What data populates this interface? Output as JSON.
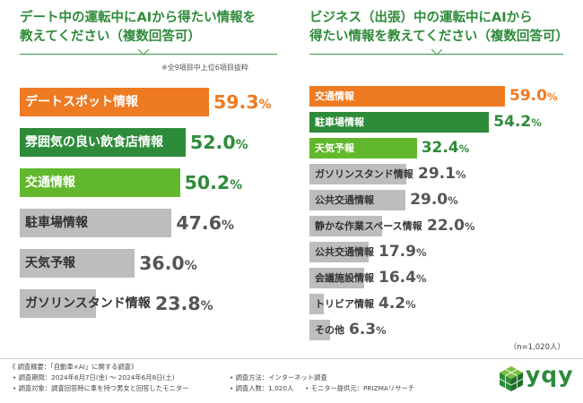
{
  "titles": {
    "left_line1": "デート中の運転中にAIから得たい情報を",
    "left_line2": "教えてください（複数回答可）",
    "right_line1": "ビジネス（出張）中の運転中にAIから",
    "right_line2": "得たい情報を教えてください（複数回答可）"
  },
  "note": "※全9項目中上位6項目抜粋",
  "sample_size": "（n=1,020人）",
  "colors": {
    "orange": "#ee7a22",
    "green": "#2e8b3a",
    "lime": "#62b82d",
    "gray": "#bdbdbd",
    "title": "#2e8b3a"
  },
  "chart_data": [
    {
      "type": "bar",
      "orientation": "horizontal",
      "title": "デート中の運転中にAIから得たい情報を教えてください（複数回答可）",
      "unit": "%",
      "categories": [
        "デートスポット情報",
        "雰囲気の良い飲食店情報",
        "交通情報",
        "駐車場情報",
        "天気予報",
        "ガソリンスタンド情報"
      ],
      "values": [
        59.3,
        52.0,
        50.2,
        47.6,
        36.0,
        23.8
      ],
      "labels": [
        "59.3",
        "52.0",
        "50.2",
        "47.6",
        "36.0",
        "23.8"
      ],
      "xlim": [
        0,
        70
      ]
    },
    {
      "type": "bar",
      "orientation": "horizontal",
      "title": "ビジネス（出張）中の運転中にAIから得たい情報を教えてください（複数回答可）",
      "unit": "%",
      "categories": [
        "交通情報",
        "駐車場情報",
        "天気予報",
        "ガソリンスタンド情報",
        "公共交通情報",
        "静かな作業スペース情報",
        "公共交通情報",
        "会議施設情報",
        "トリビア情報",
        "その他"
      ],
      "values": [
        59.0,
        54.2,
        32.4,
        29.1,
        29.0,
        22.0,
        17.9,
        16.4,
        4.2,
        6.3
      ],
      "labels": [
        "59.0",
        "54.2",
        "32.4",
        "29.1",
        "29.0",
        "22.0",
        "17.9",
        "16.4",
        "4.2",
        "6.3"
      ],
      "xlim": [
        0,
        70
      ]
    }
  ],
  "footer": {
    "heading": "《 調査概要：「自動車×AI」に関する調査》",
    "period": "• 調査期間：2024年6月7日(金) ～ 2024年6月8日(土)",
    "target": "• 調査対象：調査回答時に車を持つ男女と回答したモニター",
    "method": "• 調査方法：インターネット調査",
    "count": "• 調査人数：1,020人",
    "provider": "• モニター提供元：PRIZMAリサーチ"
  },
  "logo": {
    "text": "yqy"
  }
}
